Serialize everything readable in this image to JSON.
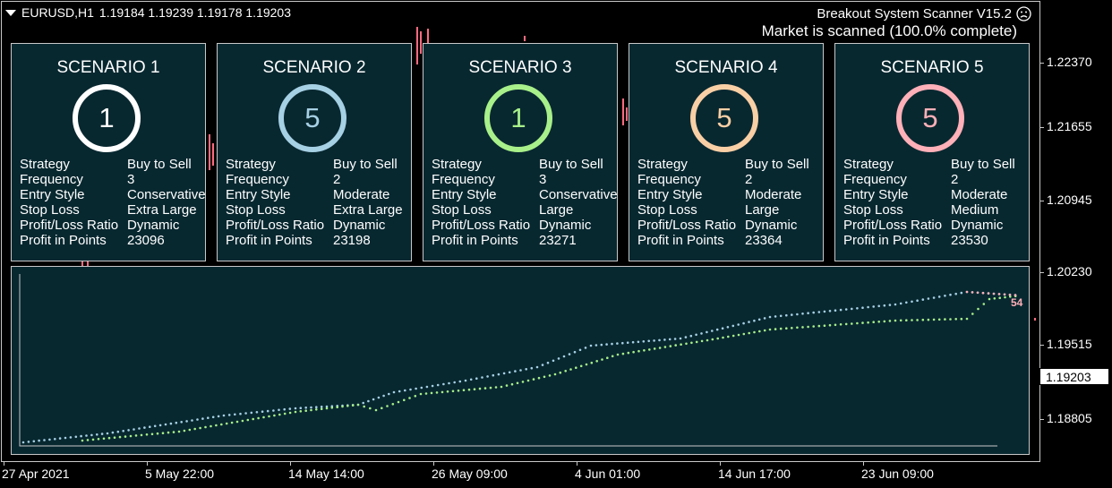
{
  "symbol_bar": {
    "symbol": "EURUSD,H1",
    "ohlc": "1.19184 1.19239 1.19178 1.19203"
  },
  "header": {
    "title": "Breakout System Scanner V15.2",
    "status": "Market is scanned (100.0% complete)",
    "icon": "frown-face-icon"
  },
  "price_axis": {
    "ticks": [
      "1.22370",
      "1.21655",
      "1.20945",
      "1.20230",
      "1.19515",
      "1.18805"
    ],
    "current": "1.19203"
  },
  "time_axis": {
    "ticks": [
      "27 Apr 2021",
      "5 May 22:00",
      "14 May 14:00",
      "26 May 09:00",
      "4 Jun 01:00",
      "14 Jun 17:00",
      "23 Jun 09:00"
    ]
  },
  "scenarios": [
    {
      "title": "SCENARIO 1",
      "count": "1",
      "ring_color": "#ffffff",
      "rows": [
        {
          "label": "Strategy",
          "value": "Buy to Sell"
        },
        {
          "label": "Frequency",
          "value": "3"
        },
        {
          "label": "Entry Style",
          "value": "Conservative"
        },
        {
          "label": "Stop Loss",
          "value": "Extra Large"
        },
        {
          "label": "Profit/Loss Ratio",
          "value": "Dynamic"
        },
        {
          "label": "Profit in Points",
          "value": "23096"
        }
      ]
    },
    {
      "title": "SCENARIO 2",
      "count": "5",
      "ring_color": "#a6d0e4",
      "rows": [
        {
          "label": "Strategy",
          "value": "Buy to Sell"
        },
        {
          "label": "Frequency",
          "value": "2"
        },
        {
          "label": "Entry Style",
          "value": "Moderate"
        },
        {
          "label": "Stop Loss",
          "value": "Extra Large"
        },
        {
          "label": "Profit/Loss Ratio",
          "value": "Dynamic"
        },
        {
          "label": "Profit in Points",
          "value": "23198"
        }
      ]
    },
    {
      "title": "SCENARIO 3",
      "count": "1",
      "ring_color": "#a8f08a",
      "rows": [
        {
          "label": "Strategy",
          "value": "Buy to Sell"
        },
        {
          "label": "Frequency",
          "value": "3"
        },
        {
          "label": "Entry Style",
          "value": "Conservative"
        },
        {
          "label": "Stop Loss",
          "value": "Large"
        },
        {
          "label": "Profit/Loss Ratio",
          "value": "Dynamic"
        },
        {
          "label": "Profit in Points",
          "value": "23271"
        }
      ]
    },
    {
      "title": "SCENARIO 4",
      "count": "5",
      "ring_color": "#f9cfa5",
      "rows": [
        {
          "label": "Strategy",
          "value": "Buy to Sell"
        },
        {
          "label": "Frequency",
          "value": "2"
        },
        {
          "label": "Entry Style",
          "value": "Moderate"
        },
        {
          "label": "Stop Loss",
          "value": "Large"
        },
        {
          "label": "Profit/Loss Ratio",
          "value": "Dynamic"
        },
        {
          "label": "Profit in Points",
          "value": "23364"
        }
      ]
    },
    {
      "title": "SCENARIO 5",
      "count": "5",
      "ring_color": "#ffb0b8",
      "rows": [
        {
          "label": "Strategy",
          "value": "Buy to Sell"
        },
        {
          "label": "Frequency",
          "value": "2"
        },
        {
          "label": "Entry Style",
          "value": "Moderate"
        },
        {
          "label": "Stop Loss",
          "value": "Medium"
        },
        {
          "label": "Profit/Loss Ratio",
          "value": "Dynamic"
        },
        {
          "label": "Profit in Points",
          "value": "23530"
        }
      ]
    }
  ],
  "equity_panel": {
    "series_colors": [
      "#a6d0e4",
      "#a8f08a",
      "#ffb0b8"
    ],
    "end_marks": "54"
  },
  "colors": {
    "background": "#000000",
    "panel": "#082830",
    "candle_bear": "#ff6b80"
  }
}
